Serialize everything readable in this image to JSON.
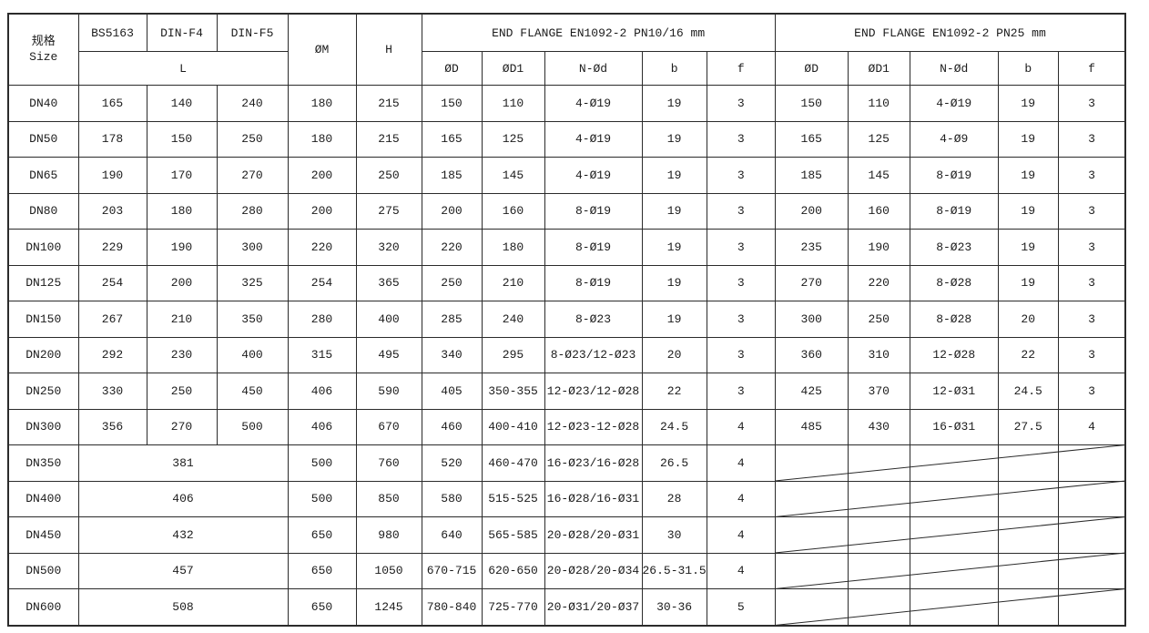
{
  "table": {
    "header": {
      "size_label_cn": "规格",
      "size_label_en": "Size",
      "standards": [
        "BS5163",
        "DIN-F4",
        "DIN-F5"
      ],
      "l_label": "L",
      "om_label": "ØM",
      "h_label": "H",
      "pn16_title": "END FLANGE EN1092-2 PN10/16 mm",
      "pn25_title": "END FLANGE EN1092-2 PN25 mm",
      "flange_cols": [
        "ØD",
        "ØD1",
        "N-Ød",
        "b",
        "f"
      ]
    },
    "rows": [
      {
        "size": "DN40",
        "l": [
          "165",
          "140",
          "240"
        ],
        "om": "180",
        "h": "215",
        "pn16": [
          "150",
          "110",
          "4-Ø19",
          "19",
          "3"
        ],
        "pn25": [
          "150",
          "110",
          "4-Ø19",
          "19",
          "3"
        ]
      },
      {
        "size": "DN50",
        "l": [
          "178",
          "150",
          "250"
        ],
        "om": "180",
        "h": "215",
        "pn16": [
          "165",
          "125",
          "4-Ø19",
          "19",
          "3"
        ],
        "pn25": [
          "165",
          "125",
          "4-Ø9",
          "19",
          "3"
        ]
      },
      {
        "size": "DN65",
        "l": [
          "190",
          "170",
          "270"
        ],
        "om": "200",
        "h": "250",
        "pn16": [
          "185",
          "145",
          "4-Ø19",
          "19",
          "3"
        ],
        "pn25": [
          "185",
          "145",
          "8-Ø19",
          "19",
          "3"
        ]
      },
      {
        "size": "DN80",
        "l": [
          "203",
          "180",
          "280"
        ],
        "om": "200",
        "h": "275",
        "pn16": [
          "200",
          "160",
          "8-Ø19",
          "19",
          "3"
        ],
        "pn25": [
          "200",
          "160",
          "8-Ø19",
          "19",
          "3"
        ]
      },
      {
        "size": "DN100",
        "l": [
          "229",
          "190",
          "300"
        ],
        "om": "220",
        "h": "320",
        "pn16": [
          "220",
          "180",
          "8-Ø19",
          "19",
          "3"
        ],
        "pn25": [
          "235",
          "190",
          "8-Ø23",
          "19",
          "3"
        ]
      },
      {
        "size": "DN125",
        "l": [
          "254",
          "200",
          "325"
        ],
        "om": "254",
        "h": "365",
        "pn16": [
          "250",
          "210",
          "8-Ø19",
          "19",
          "3"
        ],
        "pn25": [
          "270",
          "220",
          "8-Ø28",
          "19",
          "3"
        ]
      },
      {
        "size": "DN150",
        "l": [
          "267",
          "210",
          "350"
        ],
        "om": "280",
        "h": "400",
        "pn16": [
          "285",
          "240",
          "8-Ø23",
          "19",
          "3"
        ],
        "pn25": [
          "300",
          "250",
          "8-Ø28",
          "20",
          "3"
        ]
      },
      {
        "size": "DN200",
        "l": [
          "292",
          "230",
          "400"
        ],
        "om": "315",
        "h": "495",
        "pn16": [
          "340",
          "295",
          "8-Ø23/12-Ø23",
          "20",
          "3"
        ],
        "pn25": [
          "360",
          "310",
          "12-Ø28",
          "22",
          "3"
        ]
      },
      {
        "size": "DN250",
        "l": [
          "330",
          "250",
          "450"
        ],
        "om": "406",
        "h": "590",
        "pn16": [
          "405",
          "350-355",
          "12-Ø23/12-Ø28",
          "22",
          "3"
        ],
        "pn25": [
          "425",
          "370",
          "12-Ø31",
          "24.5",
          "3"
        ]
      },
      {
        "size": "DN300",
        "l": [
          "356",
          "270",
          "500"
        ],
        "om": "406",
        "h": "670",
        "pn16": [
          "460",
          "400-410",
          "12-Ø23-12-Ø28",
          "24.5",
          "4"
        ],
        "pn25": [
          "485",
          "430",
          "16-Ø31",
          "27.5",
          "4"
        ]
      },
      {
        "size": "DN350",
        "l": "381",
        "om": "500",
        "h": "760",
        "pn16": [
          "520",
          "460-470",
          "16-Ø23/16-Ø28",
          "26.5",
          "4"
        ],
        "pn25": null
      },
      {
        "size": "DN400",
        "l": "406",
        "om": "500",
        "h": "850",
        "pn16": [
          "580",
          "515-525",
          "16-Ø28/16-Ø31",
          "28",
          "4"
        ],
        "pn25": null
      },
      {
        "size": "DN450",
        "l": "432",
        "om": "650",
        "h": "980",
        "pn16": [
          "640",
          "565-585",
          "20-Ø28/20-Ø31",
          "30",
          "4"
        ],
        "pn25": null
      },
      {
        "size": "DN500",
        "l": "457",
        "om": "650",
        "h": "1050",
        "pn16": [
          "670-715",
          "620-650",
          "20-Ø28/20-Ø34",
          "26.5-31.5",
          "4"
        ],
        "pn25": null
      },
      {
        "size": "DN600",
        "l": "508",
        "om": "650",
        "h": "1245",
        "pn16": [
          "780-840",
          "725-770",
          "20-Ø31/20-Ø37",
          "30-36",
          "5"
        ],
        "pn25": null
      }
    ]
  }
}
